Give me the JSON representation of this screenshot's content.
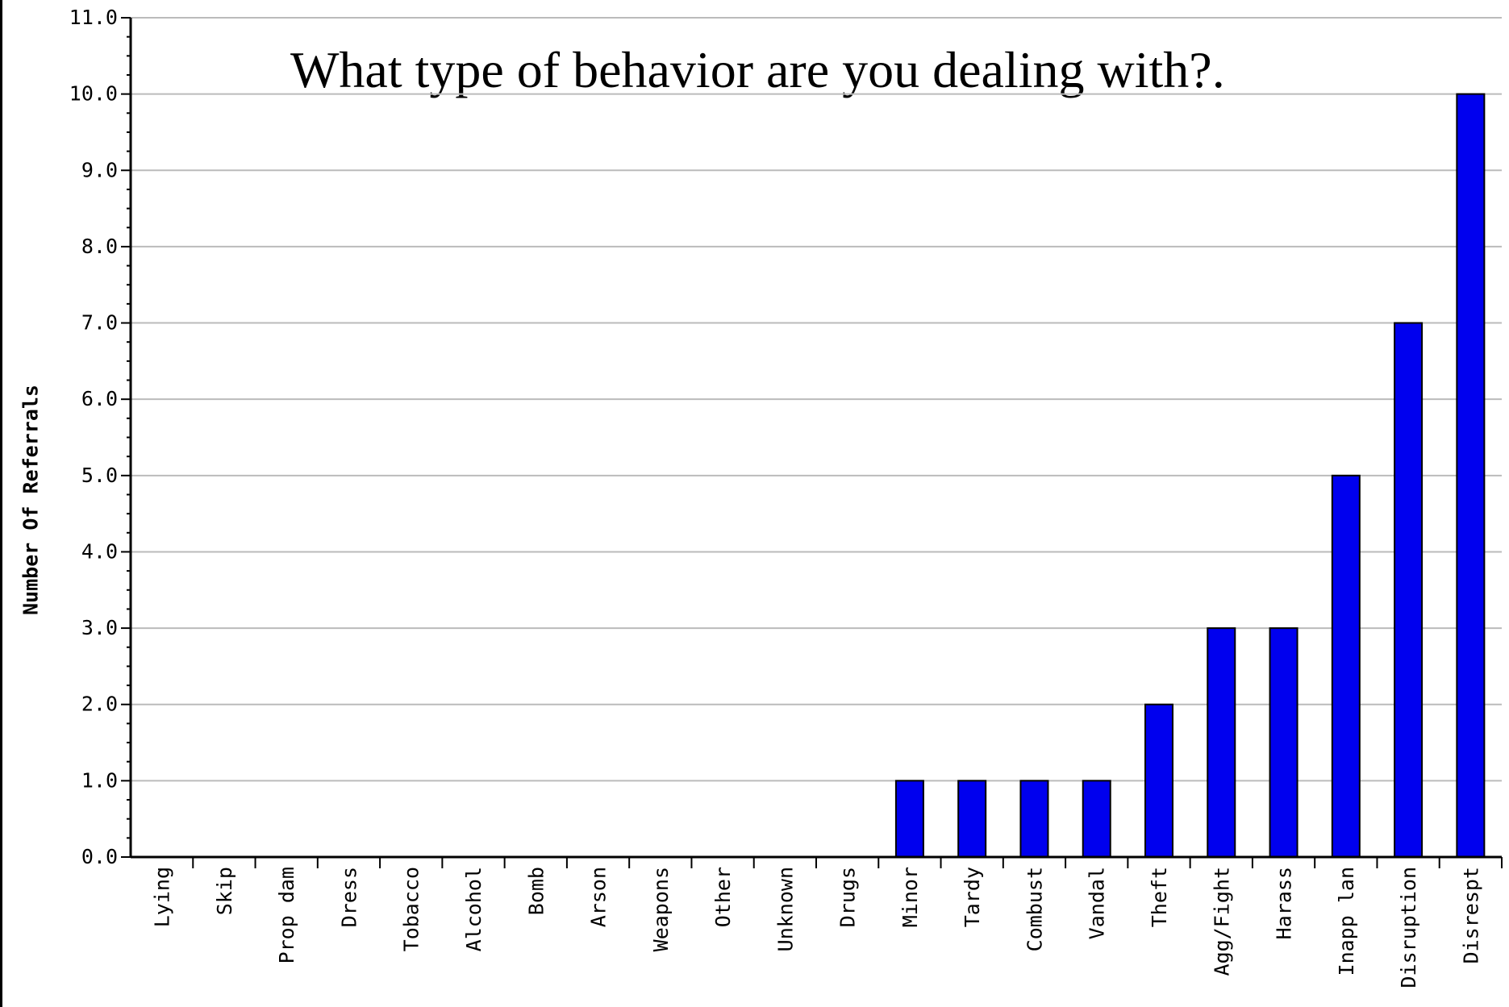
{
  "chart_data": {
    "type": "bar",
    "title": "What type of behavior are you dealing with?.",
    "xlabel": "",
    "ylabel": "Number Of Referrals",
    "categories": [
      "Lying",
      "Skip",
      "Prop dam",
      "Dress",
      "Tobacco",
      "Alcohol",
      "Bomb",
      "Arson",
      "Weapons",
      "Other",
      "Unknown",
      "Drugs",
      "Minor",
      "Tardy",
      "Combust",
      "Vandal",
      "Theft",
      "Agg/Fight",
      "Harass",
      "Inapp lan",
      "Disruption",
      "Disrespt"
    ],
    "values": [
      0,
      0,
      0,
      0,
      0,
      0,
      0,
      0,
      0,
      0,
      0,
      0,
      1,
      1,
      1,
      1,
      2,
      3,
      3,
      5,
      7,
      10
    ],
    "ylim": [
      0,
      11
    ],
    "yticks": [
      "0.0",
      "1.0",
      "2.0",
      "3.0",
      "4.0",
      "5.0",
      "6.0",
      "7.0",
      "8.0",
      "9.0",
      "10.0",
      "11.0"
    ],
    "grid": true,
    "bar_color": "#0000ee",
    "grid_color": "#bbbbbb"
  }
}
